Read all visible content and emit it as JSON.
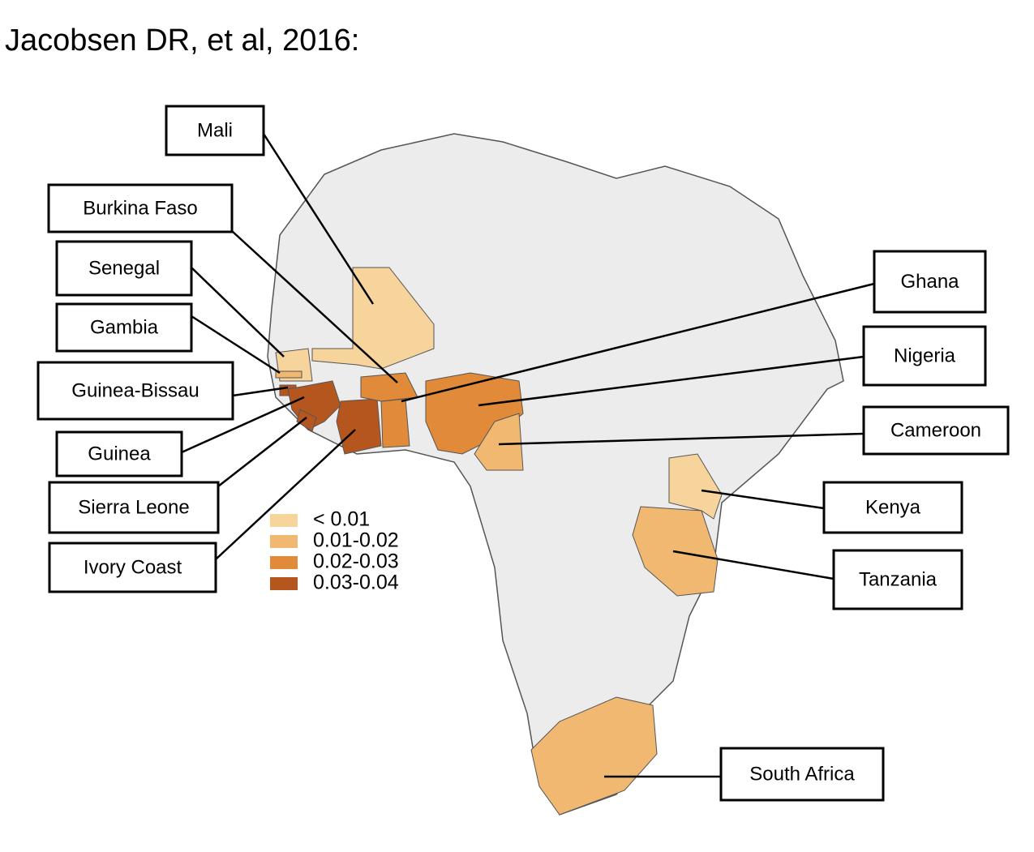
{
  "title": "Jacobsen DR, et al, 2016:",
  "legend": [
    {
      "label": "< 0.01",
      "color": "#f6d49c"
    },
    {
      "label": "0.01-0.02",
      "color": "#f0b870"
    },
    {
      "label": "0.02-0.03",
      "color": "#e08a3a"
    },
    {
      "label": "0.03-0.04",
      "color": "#b5561f"
    }
  ],
  "labels": [
    {
      "text": "Mali",
      "color": "#f6d49c"
    },
    {
      "text": "Burkina Faso",
      "color": "#e08a3a"
    },
    {
      "text": "Senegal",
      "color": "#f6d49c"
    },
    {
      "text": "Gambia",
      "color": "#f0b870"
    },
    {
      "text": "Guinea-Bissau",
      "color": "#b5561f"
    },
    {
      "text": "Guinea",
      "color": "#b5561f"
    },
    {
      "text": "Sierra Leone",
      "color": "#b5561f"
    },
    {
      "text": "Ivory Coast",
      "color": "#b5561f"
    },
    {
      "text": "Ghana",
      "color": "#e08a3a"
    },
    {
      "text": "Nigeria",
      "color": "#e08a3a"
    },
    {
      "text": "Cameroon",
      "color": "#f0b870"
    },
    {
      "text": "Kenya",
      "color": "#f6d49c"
    },
    {
      "text": "Tanzania",
      "color": "#f0b870"
    },
    {
      "text": "South Africa",
      "color": "#f0b870"
    }
  ]
}
